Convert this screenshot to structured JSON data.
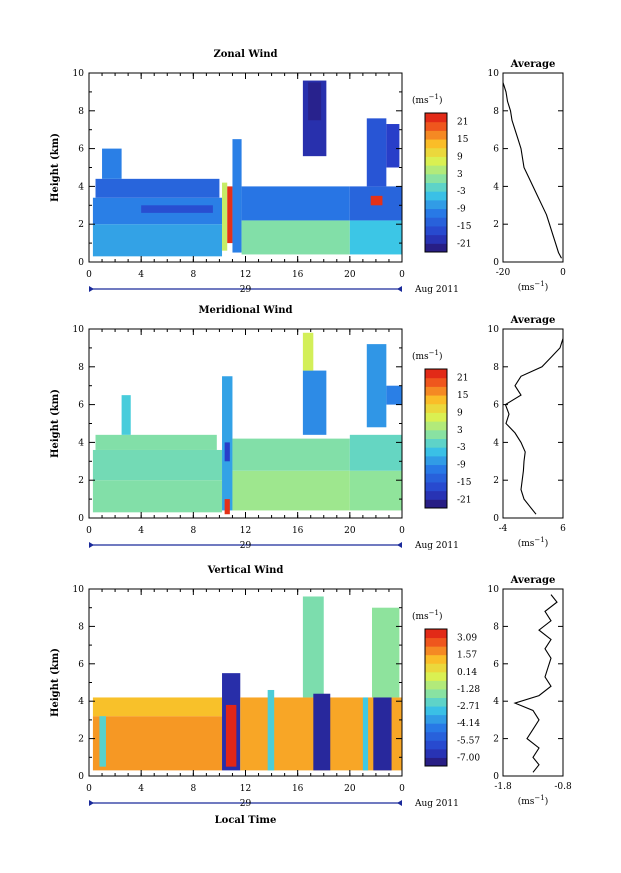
{
  "chart_data": [
    {
      "type": "heatmap",
      "title": "Zonal Wind",
      "ylabel": "Height (km)",
      "ylim": [
        0,
        10
      ],
      "y_ticks": [
        "0",
        "2",
        "4",
        "6",
        "8",
        "10"
      ],
      "x_ticks": [
        "0",
        "4",
        "8",
        "12",
        "16",
        "20",
        "0"
      ],
      "xlim": [
        0,
        24
      ],
      "date_label": "29",
      "date_suffix": "Aug 2011",
      "colorbar": {
        "unit": "(ms",
        "unit_exp": "−1",
        "unit_close": ")",
        "ticks": [
          "21",
          "15",
          "9",
          "3",
          "-3",
          "-9",
          "-15",
          "-21"
        ],
        "range": [
          -24,
          24
        ]
      },
      "cells": [
        {
          "t0": 0.3,
          "t1": 10.2,
          "h0": 0.3,
          "h1": 2.0,
          "v": -7
        },
        {
          "t0": 0.3,
          "t1": 10.2,
          "h0": 2.0,
          "h1": 3.4,
          "v": -10
        },
        {
          "t0": 0.5,
          "t1": 10.0,
          "h0": 3.4,
          "h1": 4.4,
          "v": -13
        },
        {
          "t0": 1.0,
          "t1": 2.5,
          "h0": 4.4,
          "h1": 6.0,
          "v": -10
        },
        {
          "t0": 4.0,
          "t1": 9.5,
          "h0": 2.6,
          "h1": 3.0,
          "v": -16
        },
        {
          "t0": 10.2,
          "t1": 10.6,
          "h0": 0.6,
          "h1": 4.2,
          "v": 6
        },
        {
          "t0": 10.6,
          "t1": 11.0,
          "h0": 1.0,
          "h1": 4.0,
          "v": 22
        },
        {
          "t0": 11.0,
          "t1": 11.7,
          "h0": 0.5,
          "h1": 6.5,
          "v": -10
        },
        {
          "t0": 11.7,
          "t1": 20.0,
          "h0": 0.4,
          "h1": 2.2,
          "v": 1
        },
        {
          "t0": 11.7,
          "t1": 20.0,
          "h0": 2.2,
          "h1": 4.0,
          "v": -11
        },
        {
          "t0": 16.4,
          "t1": 18.2,
          "h0": 5.6,
          "h1": 9.6,
          "v": -20
        },
        {
          "t0": 16.8,
          "t1": 17.8,
          "h0": 7.5,
          "h1": 9.5,
          "v": -22
        },
        {
          "t0": 20.0,
          "t1": 24.0,
          "h0": 0.4,
          "h1": 2.2,
          "v": -4
        },
        {
          "t0": 20.0,
          "t1": 24.0,
          "h0": 2.2,
          "h1": 4.0,
          "v": -13
        },
        {
          "t0": 21.3,
          "t1": 22.8,
          "h0": 4.0,
          "h1": 7.6,
          "v": -15
        },
        {
          "t0": 21.6,
          "t1": 22.5,
          "h0": 3.0,
          "h1": 3.5,
          "v": 22
        },
        {
          "t0": 22.8,
          "t1": 23.8,
          "h0": 5.0,
          "h1": 7.3,
          "v": -18
        }
      ],
      "profile": {
        "title": "Average",
        "xlim": [
          -20,
          0
        ],
        "x_ticks": [
          "-20",
          "0"
        ],
        "xlabel": "(ms",
        "xlabel_exp": "−1",
        "xlabel_close": ")",
        "ylim": [
          0,
          10
        ],
        "y_ticks": [
          "0",
          "2",
          "4",
          "6",
          "8",
          "10"
        ],
        "h": [
          0.2,
          0.5,
          1.0,
          1.5,
          2.0,
          2.5,
          3.0,
          3.5,
          4.0,
          4.5,
          5.0,
          5.5,
          6.0,
          6.5,
          7.0,
          7.5,
          8.0,
          8.5,
          9.0,
          9.5
        ],
        "v": [
          -0.5,
          -1.5,
          -2.5,
          -3.5,
          -4.5,
          -5.5,
          -7.0,
          -8.5,
          -10.0,
          -11.5,
          -13.0,
          -13.5,
          -14.0,
          -15.0,
          -16.0,
          -17.0,
          -17.5,
          -18.5,
          -19.0,
          -20.0
        ]
      }
    },
    {
      "type": "heatmap",
      "title": "Meridional Wind",
      "ylabel": "Height (km)",
      "ylim": [
        0,
        10
      ],
      "y_ticks": [
        "0",
        "2",
        "4",
        "6",
        "8",
        "10"
      ],
      "x_ticks": [
        "0",
        "4",
        "8",
        "12",
        "16",
        "20",
        "0"
      ],
      "xlim": [
        0,
        24
      ],
      "date_label": "29",
      "date_suffix": "Aug 2011",
      "colorbar": {
        "unit": "(ms",
        "unit_exp": "−1",
        "unit_close": ")",
        "ticks": [
          "21",
          "15",
          "9",
          "3",
          "-3",
          "-9",
          "-15",
          "-21"
        ],
        "range": [
          -24,
          24
        ]
      },
      "cells": [
        {
          "t0": 0.3,
          "t1": 10.2,
          "h0": 0.3,
          "h1": 2.0,
          "v": 1
        },
        {
          "t0": 0.3,
          "t1": 10.2,
          "h0": 2.0,
          "h1": 3.6,
          "v": 0
        },
        {
          "t0": 0.5,
          "t1": 9.8,
          "h0": 3.6,
          "h1": 4.4,
          "v": 1
        },
        {
          "t0": 2.5,
          "t1": 3.2,
          "h0": 4.4,
          "h1": 6.5,
          "v": -3
        },
        {
          "t0": 10.2,
          "t1": 11.0,
          "h0": 0.4,
          "h1": 7.5,
          "v": -7
        },
        {
          "t0": 10.4,
          "t1": 10.8,
          "h0": 0.2,
          "h1": 1.0,
          "v": 22
        },
        {
          "t0": 10.4,
          "t1": 10.8,
          "h0": 3.0,
          "h1": 4.0,
          "v": -18
        },
        {
          "t0": 11.0,
          "t1": 20.0,
          "h0": 0.4,
          "h1": 2.5,
          "v": 3
        },
        {
          "t0": 11.0,
          "t1": 20.0,
          "h0": 2.5,
          "h1": 4.2,
          "v": 1
        },
        {
          "t0": 16.4,
          "t1": 18.2,
          "h0": 4.4,
          "h1": 7.8,
          "v": -9
        },
        {
          "t0": 16.4,
          "t1": 17.2,
          "h0": 7.8,
          "h1": 9.8,
          "v": 7
        },
        {
          "t0": 20.0,
          "t1": 24.0,
          "h0": 0.4,
          "h1": 2.5,
          "v": 2
        },
        {
          "t0": 20.0,
          "t1": 24.0,
          "h0": 2.5,
          "h1": 4.4,
          "v": -1
        },
        {
          "t0": 21.3,
          "t1": 22.8,
          "h0": 4.8,
          "h1": 9.2,
          "v": -8
        },
        {
          "t0": 22.8,
          "t1": 24.0,
          "h0": 6.0,
          "h1": 7.0,
          "v": -10
        }
      ],
      "profile": {
        "title": "Average",
        "xlim": [
          -4,
          6
        ],
        "x_ticks": [
          "-4",
          "6"
        ],
        "xlabel": "(ms",
        "xlabel_exp": "−1",
        "xlabel_close": ")",
        "ylim": [
          0,
          10
        ],
        "y_ticks": [
          "0",
          "2",
          "4",
          "6",
          "8",
          "10"
        ],
        "h": [
          0.2,
          0.6,
          1.0,
          1.5,
          2.0,
          2.5,
          3.0,
          3.5,
          4.0,
          4.5,
          5.0,
          5.5,
          6.0,
          6.5,
          7.0,
          7.5,
          8.0,
          8.5,
          9.0,
          9.5
        ],
        "v": [
          1.5,
          0.5,
          -0.5,
          -1.0,
          -0.8,
          -0.6,
          -0.5,
          -0.3,
          -1.0,
          -2.0,
          -3.5,
          -3.0,
          -3.6,
          -1.0,
          -2.0,
          -1.0,
          2.5,
          4.0,
          5.5,
          6.0
        ]
      }
    },
    {
      "type": "heatmap",
      "title": "Vertical Wind",
      "ylabel": "Height (km)",
      "xlabel": "Local Time",
      "ylim": [
        0,
        10
      ],
      "y_ticks": [
        "0",
        "2",
        "4",
        "6",
        "8",
        "10"
      ],
      "x_ticks": [
        "0",
        "4",
        "8",
        "12",
        "16",
        "20",
        "0"
      ],
      "xlim": [
        0,
        24
      ],
      "date_label": "29",
      "date_suffix": "Aug 2011",
      "colorbar": {
        "unit": "(ms",
        "unit_exp": "−1",
        "unit_close": ")",
        "ticks": [
          "3.09",
          "1.57",
          "0.14",
          "-1.28",
          "-2.71",
          "-4.14",
          "-5.57",
          "-7.00"
        ],
        "range": [
          -7.7,
          3.8
        ]
      },
      "cells": [
        {
          "t0": 0.3,
          "t1": 10.2,
          "h0": 0.3,
          "h1": 3.2,
          "v": 1.8
        },
        {
          "t0": 0.3,
          "t1": 10.2,
          "h0": 3.2,
          "h1": 4.2,
          "v": 1.2
        },
        {
          "t0": 0.8,
          "t1": 1.3,
          "h0": 0.5,
          "h1": 3.2,
          "v": -2.4
        },
        {
          "t0": 10.2,
          "t1": 11.6,
          "h0": 0.3,
          "h1": 5.5,
          "v": -6.8
        },
        {
          "t0": 10.5,
          "t1": 11.3,
          "h0": 0.5,
          "h1": 3.8,
          "v": 3.5
        },
        {
          "t0": 11.6,
          "t1": 24.0,
          "h0": 0.3,
          "h1": 4.2,
          "v": 1.6
        },
        {
          "t0": 13.7,
          "t1": 14.2,
          "h0": 0.3,
          "h1": 4.6,
          "v": -2.6
        },
        {
          "t0": 16.4,
          "t1": 18.0,
          "h0": 4.2,
          "h1": 9.6,
          "v": -1.8
        },
        {
          "t0": 17.2,
          "t1": 18.5,
          "h0": 0.3,
          "h1": 4.4,
          "v": -7.0
        },
        {
          "t0": 21.0,
          "t1": 21.4,
          "h0": 0.3,
          "h1": 4.2,
          "v": -2.8
        },
        {
          "t0": 21.7,
          "t1": 23.8,
          "h0": 4.2,
          "h1": 9.0,
          "v": -1.5
        },
        {
          "t0": 21.8,
          "t1": 23.2,
          "h0": 0.3,
          "h1": 4.2,
          "v": -7.0
        }
      ],
      "profile": {
        "title": "Average",
        "xlim": [
          -1.8,
          -0.8
        ],
        "x_ticks": [
          "-1.8",
          "-0.8"
        ],
        "xlabel": "(ms",
        "xlabel_exp": "−1",
        "xlabel_close": ")",
        "ylim": [
          0,
          10
        ],
        "y_ticks": [
          "0",
          "2",
          "4",
          "6",
          "8",
          "10"
        ],
        "h": [
          0.2,
          0.6,
          1.0,
          1.5,
          2.0,
          2.5,
          3.0,
          3.5,
          3.9,
          4.3,
          4.8,
          5.3,
          5.8,
          6.3,
          6.8,
          7.3,
          7.8,
          8.3,
          8.8,
          9.3,
          9.7
        ],
        "v": [
          -1.3,
          -1.2,
          -1.3,
          -1.2,
          -1.4,
          -1.3,
          -1.2,
          -1.3,
          -1.6,
          -1.2,
          -1.0,
          -1.1,
          -1.05,
          -1.0,
          -1.1,
          -1.0,
          -1.2,
          -1.0,
          -1.1,
          -0.9,
          -1.0
        ]
      }
    }
  ]
}
